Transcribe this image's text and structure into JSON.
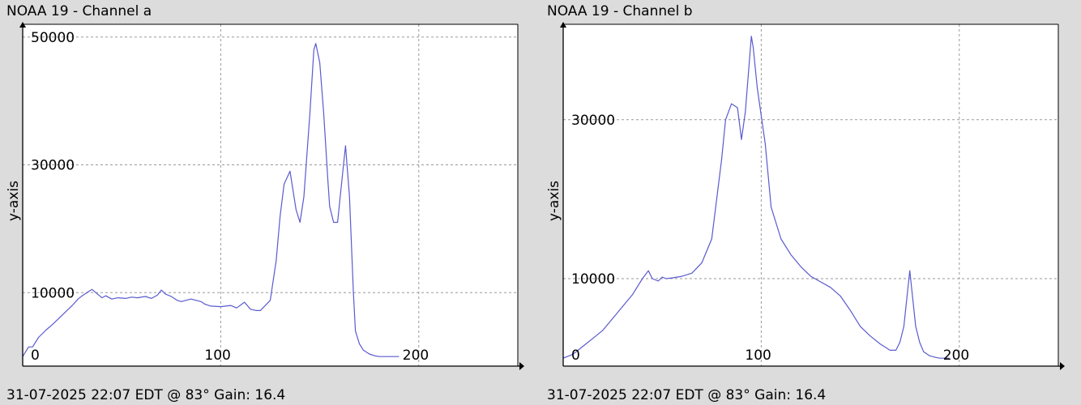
{
  "chart_data": [
    {
      "type": "line",
      "title": "NOAA 19 - Channel a",
      "footer": "31-07-2025 22:07 EDT @ 83° Gain: 16.4",
      "ylabel": "y-axis",
      "xlim": [
        0,
        250
      ],
      "ylim": [
        -1500,
        52000
      ],
      "xticks": [
        0,
        100,
        200
      ],
      "xtick_labels": [
        "0",
        "100",
        "200"
      ],
      "yticks": [
        10000,
        30000,
        50000
      ],
      "ytick_labels": [
        "10000",
        "30000",
        "50000"
      ],
      "grid": true,
      "series": [
        {
          "color": "#5a5ad0",
          "x": [
            0,
            3,
            5,
            8,
            12,
            15,
            20,
            25,
            28,
            30,
            35,
            40,
            42,
            45,
            48,
            52,
            55,
            58,
            62,
            65,
            68,
            70,
            72,
            75,
            78,
            80,
            85,
            90,
            92,
            95,
            100,
            105,
            108,
            112,
            115,
            118,
            120,
            125,
            128,
            130,
            132,
            135,
            138,
            140,
            142,
            145,
            147,
            148,
            150,
            152,
            154,
            155,
            157,
            159,
            160,
            162,
            163,
            165,
            167,
            168,
            170,
            172,
            175,
            178,
            180,
            185,
            190
          ],
          "y": [
            0,
            1500,
            1500,
            3000,
            4200,
            5000,
            6500,
            8000,
            9000,
            9500,
            10500,
            9200,
            9500,
            9000,
            9200,
            9100,
            9300,
            9200,
            9400,
            9100,
            9600,
            10400,
            9800,
            9400,
            8800,
            8600,
            9000,
            8600,
            8200,
            7900,
            7800,
            8000,
            7600,
            8500,
            7400,
            7200,
            7200,
            8800,
            15000,
            22000,
            27000,
            29000,
            23000,
            21000,
            25000,
            38000,
            48000,
            49000,
            46000,
            38000,
            28000,
            23500,
            21000,
            21000,
            24000,
            30000,
            33000,
            25000,
            10000,
            4000,
            2000,
            1000,
            400,
            100,
            0,
            0,
            0
          ]
        }
      ]
    },
    {
      "type": "line",
      "title": "NOAA 19 - Channel b",
      "footer": "31-07-2025 22:07 EDT @ 83° Gain: 16.4",
      "ylabel": "y-axis",
      "xlim": [
        0,
        250
      ],
      "ylim": [
        -1000,
        42000
      ],
      "xticks": [
        0,
        100,
        200
      ],
      "xtick_labels": [
        "0",
        "100",
        "200"
      ],
      "yticks": [
        10000,
        30000
      ],
      "ytick_labels": [
        "10000",
        "30000"
      ],
      "grid": true,
      "series": [
        {
          "color": "#5a5ad0",
          "x": [
            0,
            5,
            10,
            15,
            20,
            25,
            30,
            35,
            40,
            43,
            45,
            48,
            50,
            52,
            55,
            60,
            65,
            70,
            75,
            80,
            82,
            85,
            88,
            90,
            92,
            95,
            96,
            98,
            100,
            102,
            105,
            110,
            115,
            120,
            125,
            130,
            135,
            140,
            145,
            150,
            155,
            160,
            165,
            168,
            170,
            172,
            175,
            178,
            180,
            182,
            185,
            188,
            190,
            195
          ],
          "y": [
            0,
            500,
            1500,
            2500,
            3500,
            5000,
            6500,
            8000,
            10000,
            11000,
            10000,
            9700,
            10200,
            10000,
            10100,
            10300,
            10700,
            12000,
            15000,
            25000,
            30000,
            32000,
            31500,
            27500,
            31000,
            40500,
            39000,
            34000,
            30500,
            27000,
            19000,
            15000,
            13000,
            11500,
            10300,
            9600,
            8900,
            7800,
            6000,
            4000,
            2800,
            1800,
            1000,
            1000,
            2000,
            4000,
            11000,
            4000,
            2000,
            800,
            300,
            100,
            0,
            0
          ]
        }
      ]
    }
  ]
}
